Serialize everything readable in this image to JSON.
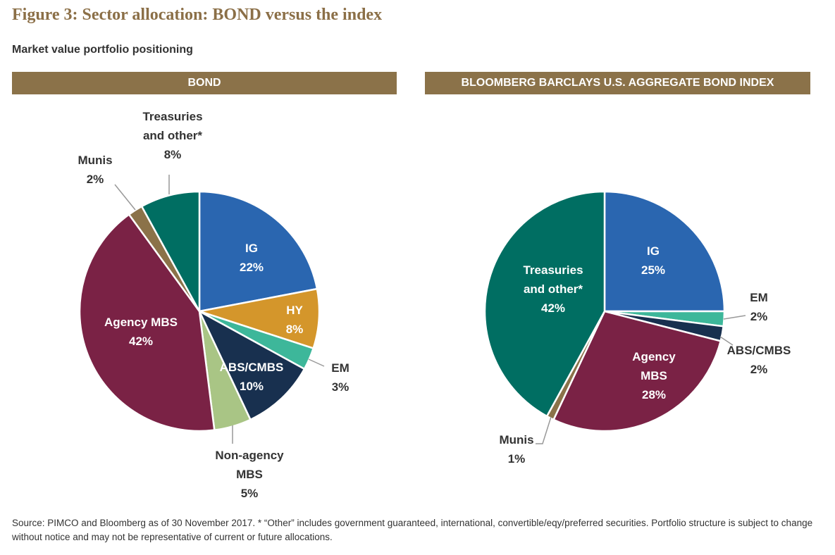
{
  "title": "Figure 3: Sector allocation: BOND versus the index",
  "subtitle": "Market value portfolio positioning",
  "footnote": "Source: PIMCO and Bloomberg as of 30 November 2017. * “Other” includes government guaranteed, international, convertible/eqy/preferred securities. Portfolio structure is subject to change without notice and may not be representative of current or future allocations.",
  "colors": {
    "IG": "#2a66b0",
    "HY": "#d4962b",
    "EM": "#3db79a",
    "ABS/CMBS": "#18304f",
    "Non-agency MBS": "#a9c585",
    "Agency MBS": "#7a2245",
    "Munis": "#8b7249",
    "Treasuries and other*": "#006e62",
    "header": "#8b7249"
  },
  "chart_data": [
    {
      "type": "pie",
      "title": "BOND",
      "start": "12 o'clock",
      "direction": "clockwise",
      "slices": [
        {
          "label": "IG",
          "lines": [
            "IG",
            "22%"
          ],
          "value": 22
        },
        {
          "label": "HY",
          "lines": [
            "HY",
            "8%"
          ],
          "value": 8
        },
        {
          "label": "EM",
          "lines": [
            "EM",
            "3%"
          ],
          "value": 3
        },
        {
          "label": "ABS/CMBS",
          "lines": [
            "ABS/CMBS",
            "10%"
          ],
          "value": 10
        },
        {
          "label": "Non-agency MBS",
          "lines": [
            "Non-agency",
            "MBS",
            "5%"
          ],
          "value": 5
        },
        {
          "label": "Agency MBS",
          "lines": [
            "Agency MBS",
            "42%"
          ],
          "value": 42
        },
        {
          "label": "Munis",
          "lines": [
            "Munis",
            "2%"
          ],
          "value": 2
        },
        {
          "label": "Treasuries and other*",
          "lines": [
            "Treasuries",
            "and other*",
            "8%"
          ],
          "value": 8
        }
      ]
    },
    {
      "type": "pie",
      "title": "BLOOMBERG BARCLAYS U.S. AGGREGATE BOND INDEX",
      "start": "12 o'clock",
      "direction": "clockwise",
      "slices": [
        {
          "label": "IG",
          "lines": [
            "IG",
            "25%"
          ],
          "value": 25
        },
        {
          "label": "EM",
          "lines": [
            "EM",
            "2%"
          ],
          "value": 2
        },
        {
          "label": "ABS/CMBS",
          "lines": [
            "ABS/CMBS",
            "2%"
          ],
          "value": 2
        },
        {
          "label": "Agency MBS",
          "lines": [
            "Agency",
            "MBS",
            "28%"
          ],
          "value": 28
        },
        {
          "label": "Munis",
          "lines": [
            "Munis",
            "1%"
          ],
          "value": 1
        },
        {
          "label": "Treasuries and other*",
          "lines": [
            "Treasuries",
            "and other*",
            "42%"
          ],
          "value": 42
        }
      ]
    }
  ]
}
